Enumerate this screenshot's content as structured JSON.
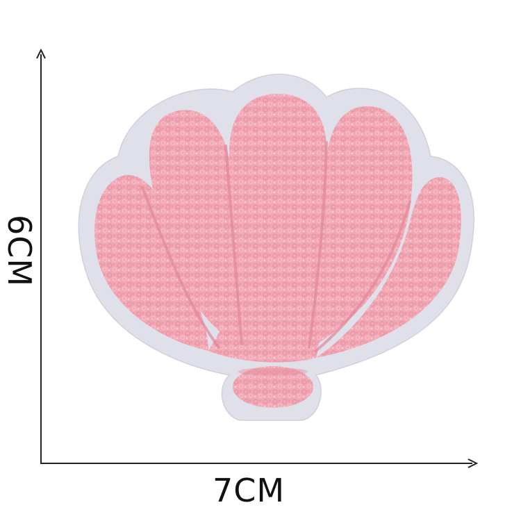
{
  "dimensions": {
    "width_label": "7CM",
    "height_label": "6CM"
  },
  "product": {
    "shape": "seashell",
    "colors": {
      "chenille": "#f2a7b4",
      "chenille_shadow": "#e88e9f",
      "felt_border": "#dfe0ea",
      "background": "#ffffff",
      "axis": "#222222"
    }
  }
}
